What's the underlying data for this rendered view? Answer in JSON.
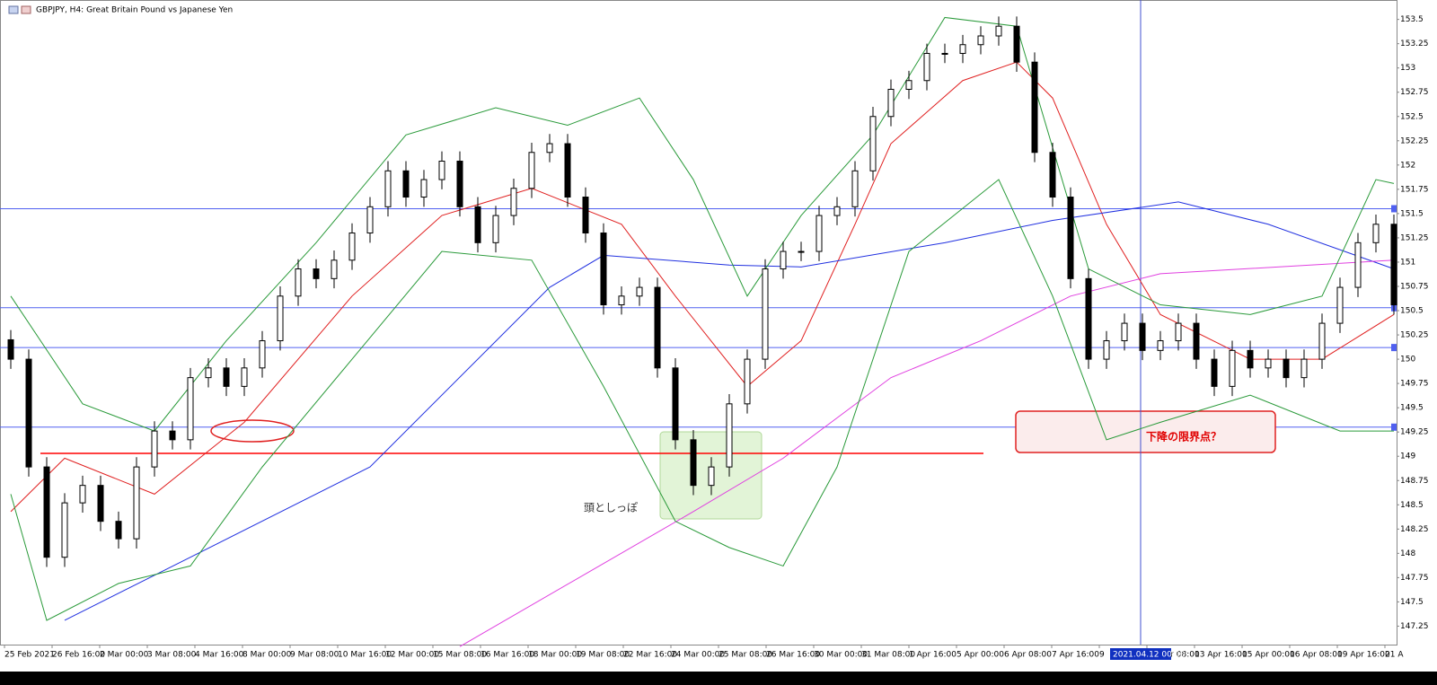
{
  "chart_data": {
    "type": "candlestick",
    "title": "GBPJPY, H4:  Great Britain Pound vs Japanese Yen",
    "xtick_labels": [
      "25 Feb 2021",
      "26 Feb 16:00",
      "2 Mar 00:00",
      "3 Mar 08:00",
      "4 Mar 16:00",
      "8 Mar 00:00",
      "9 Mar 08:00",
      "10 Mar 16:00",
      "12 Mar 00:00",
      "15 Mar 08:00",
      "16 Mar 16:00",
      "18 Mar 00:00",
      "19 Mar 08:00",
      "22 Mar 16:00",
      "24 Mar 00:00",
      "25 Mar 08:00",
      "26 Mar 16:00",
      "30 Mar 00:00",
      "31 Mar 08:00",
      "1 Apr 16:00",
      "5 Apr 00:00",
      "6 Apr 08:00",
      "7 Apr 16:00",
      "9",
      "12 Apr 08:00",
      "13 Apr 16:00",
      "15 Apr 00:00",
      "16 Apr 08:00",
      "19 Apr 16:00",
      "21 A"
    ],
    "crosshair_label": "2021.04.12 00:00",
    "open": [
      150.2,
      150.0,
      148.89,
      147.96,
      148.52,
      148.7,
      148.33,
      148.15,
      148.89,
      149.26,
      149.17,
      149.81,
      149.91,
      149.72,
      149.91,
      150.19,
      150.65,
      150.93,
      150.83,
      151.02,
      151.3,
      151.57,
      151.94,
      151.67,
      151.85,
      152.04,
      151.57,
      151.2,
      151.48,
      151.76,
      152.13,
      152.22,
      151.67,
      151.3,
      150.56,
      150.65,
      150.74,
      149.91,
      149.17,
      148.7,
      148.89,
      149.54,
      150.0,
      150.93,
      151.11,
      151.11,
      151.48,
      151.57,
      151.94,
      152.5,
      152.78,
      152.87,
      153.15,
      153.15,
      153.24,
      153.33,
      153.43,
      153.06,
      152.13,
      151.67,
      150.83,
      150.0,
      150.19,
      150.37,
      150.09,
      150.19,
      150.37,
      150.0,
      149.72,
      150.09,
      149.91,
      150.0,
      149.81,
      150.0,
      150.37,
      150.74,
      151.2,
      151.39
    ],
    "high": [
      150.3,
      150.1,
      148.99,
      148.62,
      148.8,
      148.8,
      148.43,
      148.99,
      149.36,
      149.36,
      149.91,
      150.01,
      150.01,
      150.01,
      150.29,
      150.75,
      151.03,
      151.03,
      151.12,
      151.4,
      151.67,
      152.04,
      152.04,
      151.95,
      152.14,
      152.14,
      151.67,
      151.58,
      151.86,
      152.23,
      152.32,
      152.32,
      151.77,
      151.4,
      150.75,
      150.84,
      150.84,
      150.01,
      149.27,
      148.99,
      149.64,
      150.1,
      151.03,
      151.21,
      151.21,
      151.58,
      151.67,
      152.04,
      152.6,
      152.88,
      152.97,
      153.25,
      153.25,
      153.34,
      153.43,
      153.53,
      153.53,
      153.16,
      152.23,
      151.77,
      150.93,
      150.29,
      150.47,
      150.47,
      150.29,
      150.47,
      150.47,
      150.1,
      150.19,
      150.19,
      150.1,
      150.1,
      150.1,
      150.47,
      150.84,
      151.3,
      151.49,
      151.49
    ],
    "low": [
      149.9,
      148.79,
      147.86,
      147.86,
      148.42,
      148.23,
      148.05,
      148.05,
      148.79,
      149.07,
      149.07,
      149.71,
      149.62,
      149.62,
      149.81,
      150.09,
      150.55,
      150.73,
      150.73,
      150.92,
      151.2,
      151.47,
      151.57,
      151.57,
      151.75,
      151.47,
      151.1,
      151.1,
      151.38,
      151.66,
      152.03,
      151.57,
      151.2,
      150.46,
      150.46,
      150.55,
      149.81,
      149.07,
      148.6,
      148.6,
      148.79,
      149.44,
      149.9,
      150.83,
      151.01,
      151.01,
      151.38,
      151.47,
      151.84,
      152.4,
      152.68,
      152.77,
      153.05,
      153.05,
      153.14,
      153.23,
      152.96,
      152.03,
      151.57,
      150.73,
      149.9,
      149.9,
      150.09,
      149.99,
      149.99,
      150.09,
      149.9,
      149.62,
      149.62,
      149.81,
      149.81,
      149.71,
      149.71,
      149.9,
      150.27,
      150.64,
      151.1,
      150.46
    ],
    "close": [
      150.0,
      148.89,
      147.96,
      148.52,
      148.7,
      148.33,
      148.15,
      148.89,
      149.26,
      149.17,
      149.81,
      149.91,
      149.72,
      149.91,
      150.19,
      150.65,
      150.93,
      150.83,
      151.02,
      151.3,
      151.57,
      151.94,
      151.67,
      151.85,
      152.04,
      151.57,
      151.2,
      151.48,
      151.76,
      152.13,
      152.22,
      151.67,
      151.3,
      150.56,
      150.65,
      150.74,
      149.91,
      149.17,
      148.7,
      148.89,
      149.54,
      150.0,
      150.93,
      151.11,
      151.11,
      151.48,
      151.57,
      151.94,
      152.5,
      152.78,
      152.87,
      153.15,
      153.15,
      153.24,
      153.33,
      153.43,
      153.06,
      152.13,
      151.67,
      150.83,
      150.0,
      150.19,
      150.37,
      150.09,
      150.19,
      150.37,
      150.0,
      149.72,
      150.09,
      149.91,
      150.0,
      149.81,
      150.0,
      150.37,
      150.74,
      151.2,
      151.39,
      150.56
    ],
    "series": [
      {
        "color": "#e02020",
        "x": [
          0,
          3,
          8,
          13,
          19,
          24,
          29,
          34,
          37,
          41,
          44,
          47,
          49,
          53,
          56,
          58,
          61,
          64,
          69,
          73,
          77
        ],
        "values": [
          148.43,
          148.98,
          148.61,
          149.35,
          150.65,
          151.48,
          151.76,
          151.39,
          150.65,
          149.72,
          150.19,
          151.39,
          152.22,
          152.87,
          153.06,
          152.69,
          151.39,
          150.46,
          150.0,
          150.0,
          150.46
        ]
      },
      {
        "color": "#2030e0",
        "x": [
          3,
          10,
          20,
          30,
          33,
          40,
          44,
          52,
          58,
          65,
          70,
          77
        ],
        "values": [
          147.31,
          147.96,
          148.89,
          150.74,
          151.07,
          150.97,
          150.95,
          151.2,
          151.43,
          151.62,
          151.39,
          150.93
        ]
      },
      {
        "color": "#e040e0",
        "x": [
          25,
          38,
          43,
          49,
          54,
          59,
          64,
          77
        ],
        "values": [
          147.04,
          148.43,
          148.98,
          149.81,
          150.19,
          150.65,
          150.88,
          151.02
        ]
      },
      {
        "color": "#2a9a3a",
        "x": [
          0,
          4,
          8,
          12,
          17,
          22,
          27,
          31,
          35,
          38,
          41,
          44,
          48,
          52,
          56,
          60,
          64,
          69,
          73,
          76,
          77
        ],
        "values": [
          150.65,
          149.54,
          149.26,
          150.19,
          151.2,
          152.31,
          152.59,
          152.41,
          152.69,
          151.85,
          150.65,
          151.48,
          152.31,
          153.52,
          153.43,
          150.93,
          150.56,
          150.46,
          150.65,
          151.85,
          151.81
        ]
      },
      {
        "color": "#2a9a3a",
        "x": [
          0,
          2,
          6,
          10,
          14,
          19,
          24,
          29,
          33,
          37,
          40,
          43,
          46,
          50,
          55,
          58,
          61,
          64,
          69,
          74,
          77
        ],
        "values": [
          148.61,
          147.31,
          147.69,
          147.87,
          148.89,
          150.0,
          151.11,
          151.02,
          149.72,
          148.33,
          148.06,
          147.87,
          148.89,
          151.11,
          151.85,
          150.65,
          149.17,
          149.35,
          149.63,
          149.26,
          149.26
        ]
      }
    ],
    "hlines": [
      151.55,
      150.53,
      150.12,
      149.3
    ],
    "hline_color": "#5060f0",
    "support_line": 149.03,
    "support_color": "#ff0000",
    "annotations": {
      "pattern_label": "頭としっぽ",
      "box_label": "下降の限界点？"
    },
    "ylim": [
      147.06,
      153.7
    ],
    "yticks": [
      153.5,
      153.25,
      153,
      152.75,
      152.5,
      152.25,
      152,
      151.75,
      151.5,
      151.25,
      151,
      150.75,
      150.5,
      150.25,
      150,
      149.75,
      149.5,
      149.25,
      149,
      148.75,
      148.5,
      148.25,
      148,
      147.75,
      147.5,
      147.25
    ]
  }
}
